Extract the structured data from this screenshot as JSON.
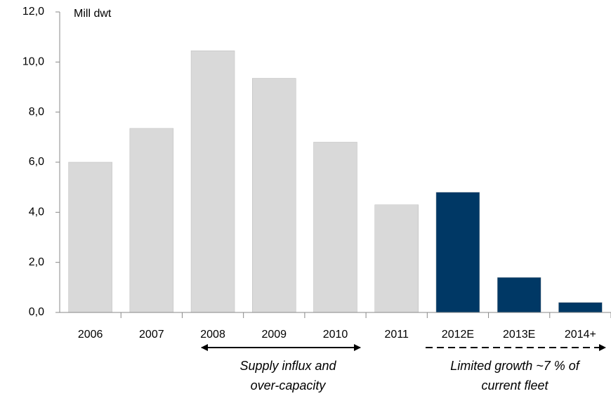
{
  "chart_data": {
    "type": "bar",
    "ylabel": "Mill dwt",
    "categories": [
      "2006",
      "2007",
      "2008",
      "2009",
      "2010",
      "2011",
      "2012E",
      "2013E",
      "2014+"
    ],
    "values": [
      6.0,
      7.35,
      10.45,
      9.35,
      6.8,
      4.3,
      4.8,
      1.4,
      0.4
    ],
    "colors": [
      "#d9d9d9",
      "#d9d9d9",
      "#d9d9d9",
      "#d9d9d9",
      "#d9d9d9",
      "#d9d9d9",
      "#003865",
      "#003865",
      "#003865"
    ],
    "ylim": [
      0,
      12
    ],
    "yticks": [
      {
        "value": 0,
        "label": "0,0"
      },
      {
        "value": 2,
        "label": "2,0"
      },
      {
        "value": 4,
        "label": "4,0"
      },
      {
        "value": 6,
        "label": "6,0"
      },
      {
        "value": 8,
        "label": "8,0"
      },
      {
        "value": 10,
        "label": "10,0"
      },
      {
        "value": 12,
        "label": "12,0"
      }
    ],
    "annotations": [
      [
        "Supply influx and",
        "over-capacity"
      ],
      [
        "Limited growth ~7 % of",
        "current fleet"
      ]
    ]
  }
}
